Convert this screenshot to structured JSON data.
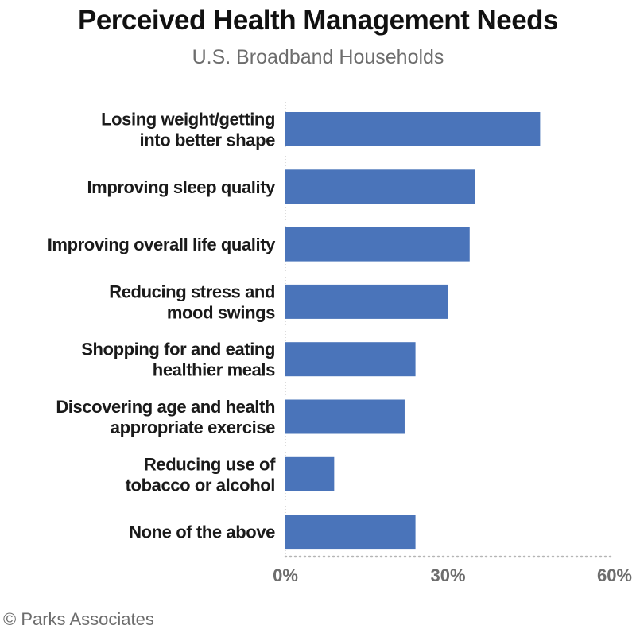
{
  "chart_data": {
    "type": "bar",
    "orientation": "horizontal",
    "title": "Perceived Health Management Needs",
    "subtitle": "U.S. Broadband Households",
    "categories": [
      [
        "Losing weight/getting",
        "into better shape"
      ],
      [
        "Improving sleep quality"
      ],
      [
        "Improving overall life quality"
      ],
      [
        "Reducing stress and",
        "mood swings"
      ],
      [
        "Shopping for and eating",
        "healthier meals"
      ],
      [
        "Discovering age and health",
        "appropriate exercise"
      ],
      [
        "Reducing use of",
        "tobacco or alcohol"
      ],
      [
        "None of the above"
      ]
    ],
    "values": [
      47,
      35,
      34,
      30,
      24,
      22,
      9,
      24
    ],
    "xlim": [
      0,
      60
    ],
    "x_ticks": [
      "0%",
      "30%",
      "60%"
    ],
    "bar_color": "#4a74ba",
    "grid": false
  },
  "credit": "© Parks Associates"
}
